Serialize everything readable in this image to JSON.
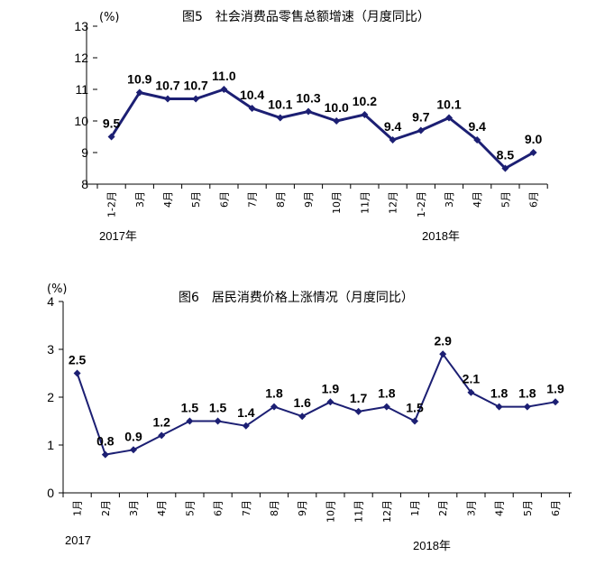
{
  "chart_data": [
    {
      "type": "line",
      "title": "图5　社会消费品零售总额增速（月度同比）",
      "unit": "(%)",
      "ylim": [
        8,
        13
      ],
      "yticks": [
        "8",
        "9",
        "10",
        "11",
        "12",
        "13"
      ],
      "categories": [
        "1-2月",
        "3月",
        "4月",
        "5月",
        "6月",
        "7月",
        "8月",
        "9月",
        "10月",
        "11月",
        "12月",
        "1-2月",
        "3月",
        "4月",
        "5月",
        "6月"
      ],
      "values": [
        9.5,
        10.9,
        10.7,
        10.7,
        11.0,
        10.4,
        10.1,
        10.3,
        10.0,
        10.2,
        9.4,
        9.7,
        10.1,
        9.4,
        8.5,
        9.0
      ],
      "labels": [
        "9.5",
        "10.9",
        "10.7",
        "10.7",
        "11.0",
        "10.4",
        "10.1",
        "10.3",
        "10.0",
        "10.2",
        "9.4",
        "9.7",
        "10.1",
        "9.4",
        "8.5",
        "9.0"
      ],
      "year_labels": [
        "2017年",
        "2018年"
      ],
      "color": "#1c1f73",
      "grid": false
    },
    {
      "type": "line",
      "title": "图6　居民消费价格上涨情况（月度同比）",
      "unit": "(%)",
      "ylim": [
        0,
        4
      ],
      "yticks": [
        "0",
        "1",
        "2",
        "3",
        "4"
      ],
      "categories": [
        "1月",
        "2月",
        "3月",
        "4月",
        "5月",
        "6月",
        "7月",
        "8月",
        "9月",
        "10月",
        "11月",
        "12月",
        "1月",
        "2月",
        "3月",
        "4月",
        "5月",
        "6月"
      ],
      "values": [
        2.5,
        0.8,
        0.9,
        1.2,
        1.5,
        1.5,
        1.4,
        1.8,
        1.6,
        1.9,
        1.7,
        1.8,
        1.5,
        2.9,
        2.1,
        1.8,
        1.8,
        1.9
      ],
      "labels": [
        "2.5",
        "0.8",
        "0.9",
        "1.2",
        "1.5",
        "1.5",
        "1.4",
        "1.8",
        "1.6",
        "1.9",
        "1.7",
        "1.8",
        "1.5",
        "2.9",
        "2.1",
        "1.8",
        "1.8",
        "1.9"
      ],
      "year_labels": [
        "2017",
        "2018年"
      ],
      "color": "#1c1f73",
      "grid": false
    }
  ]
}
